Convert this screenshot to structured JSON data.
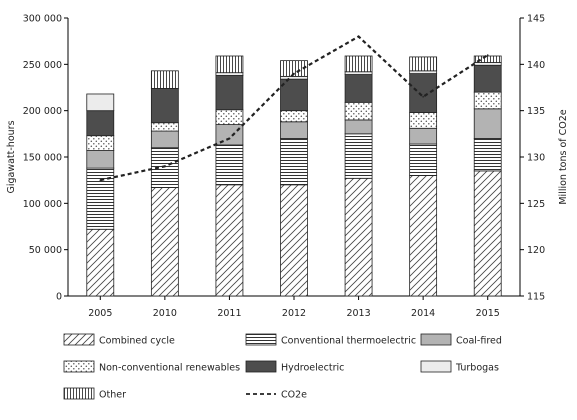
{
  "chart_data": {
    "type": "bar",
    "stacked": true,
    "categories": [
      "2005",
      "2010",
      "2011",
      "2012",
      "2013",
      "2014",
      "2015"
    ],
    "ylabel": "Gigawatt-hours",
    "y2label": "Million tons of CO2e",
    "ylim": [
      0,
      300000
    ],
    "y2lim": [
      115,
      145
    ],
    "yticks": [
      "0",
      "50 000",
      "100 000",
      "150 000",
      "200 000",
      "250 000",
      "300 000"
    ],
    "y2ticks": [
      "115",
      "120",
      "125",
      "130",
      "135",
      "140",
      "145"
    ],
    "grid": false,
    "legend_position": "bottom",
    "series": [
      {
        "name": "Combined cycle",
        "pattern": "diagonal",
        "values": [
          72000,
          117000,
          120000,
          120000,
          127000,
          130000,
          135000
        ]
      },
      {
        "name": "Conventional thermoelectric",
        "pattern": "horizontal",
        "values": [
          66000,
          43000,
          43000,
          50000,
          48000,
          34000,
          35000
        ]
      },
      {
        "name": "Coal-fired",
        "pattern": "solid-gray",
        "values": [
          19000,
          18000,
          22000,
          18000,
          15000,
          17000,
          32000
        ]
      },
      {
        "name": "Non-conventional renewables",
        "pattern": "dots",
        "values": [
          16000,
          9000,
          16000,
          12000,
          19000,
          17000,
          18000
        ]
      },
      {
        "name": "Hydroelectric",
        "pattern": "solid-dark",
        "values": [
          27000,
          37000,
          37000,
          34000,
          30000,
          42000,
          29000
        ]
      },
      {
        "name": "Turbogas",
        "pattern": "solid-light",
        "values": [
          18000,
          0,
          3000,
          3000,
          3000,
          3000,
          3000
        ]
      },
      {
        "name": "Other",
        "pattern": "vertical",
        "values": [
          0,
          19000,
          18000,
          17000,
          17000,
          15000,
          7000
        ]
      }
    ],
    "line": {
      "name": "CO2e",
      "axis": "right",
      "style": "dashed",
      "values": [
        127.5,
        129,
        132,
        139,
        143,
        136.5,
        141
      ]
    }
  }
}
